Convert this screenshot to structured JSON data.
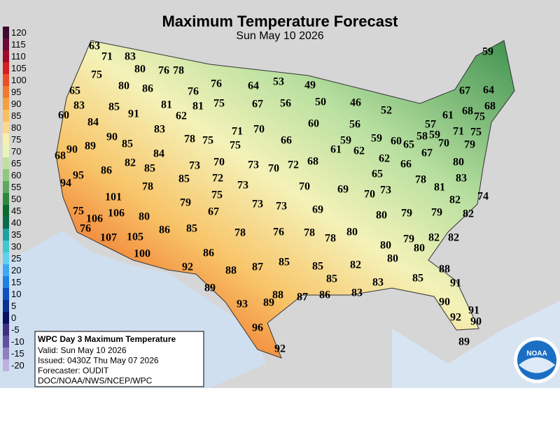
{
  "title": "Maximum Temperature Forecast",
  "subtitle": "Sun May 10 2026",
  "legend": {
    "values": [
      120,
      115,
      110,
      105,
      100,
      95,
      90,
      85,
      80,
      75,
      70,
      65,
      60,
      55,
      50,
      45,
      40,
      35,
      30,
      25,
      20,
      15,
      10,
      5,
      0,
      -5,
      -10,
      -15,
      -20
    ],
    "colors": [
      "#3d0a2e",
      "#6b0a3a",
      "#a00a2a",
      "#d42020",
      "#e8502a",
      "#f07a30",
      "#f5a040",
      "#f8c060",
      "#fad890",
      "#f8f0b0",
      "#e8f5b8",
      "#c0e0a0",
      "#90c880",
      "#60a860",
      "#308840",
      "#0a6a30",
      "#0a6a50",
      "#20a0a0",
      "#40c8d0",
      "#60d0f0",
      "#40a8f0",
      "#2080e0",
      "#1050c0",
      "#0a3090",
      "#0a1060",
      "#403080",
      "#6050a0",
      "#9080c0",
      "#c0b0e0"
    ]
  },
  "temperatures": [
    63,
    71,
    83,
    75,
    80,
    76,
    78,
    80,
    86,
    76,
    76,
    65,
    64,
    53,
    49,
    83,
    85,
    91,
    81,
    81,
    75,
    67,
    56,
    50,
    46,
    52,
    67,
    64,
    59,
    60,
    84,
    62,
    83,
    71,
    70,
    60,
    56,
    61,
    68,
    75,
    68,
    57,
    58,
    59,
    71,
    75,
    90,
    85,
    78,
    75,
    66,
    59,
    59,
    60,
    65,
    70,
    79,
    89,
    90,
    84,
    75,
    61,
    62,
    62,
    67,
    68,
    82,
    85,
    73,
    70,
    73,
    70,
    72,
    68,
    66,
    80,
    86,
    72,
    65,
    83,
    95,
    94,
    78,
    85,
    73,
    70,
    69,
    70,
    73,
    78,
    81,
    101,
    75,
    79,
    67,
    73,
    73,
    69,
    82,
    74,
    75,
    106,
    106,
    80,
    80,
    79,
    79,
    82,
    76,
    107,
    105,
    86,
    85,
    78,
    76,
    78,
    78,
    80,
    82,
    82,
    79,
    80,
    80,
    100,
    86,
    92,
    88,
    87,
    85,
    85,
    82,
    80,
    88,
    85,
    89,
    83,
    83,
    85,
    91,
    93,
    89,
    88,
    87,
    86,
    90,
    91,
    92,
    90,
    96,
    92,
    89
  ],
  "info": {
    "heading": "WPC Day 3 Maximum Temperature",
    "lines": [
      "Valid: Sun May 10 2026",
      "Issued: 0430Z Thu May 07 2026",
      "Forecaster: OUDIT",
      "DOC/NOAA/NWS/NCEP/WPC"
    ]
  },
  "logo_text": "NOAA"
}
